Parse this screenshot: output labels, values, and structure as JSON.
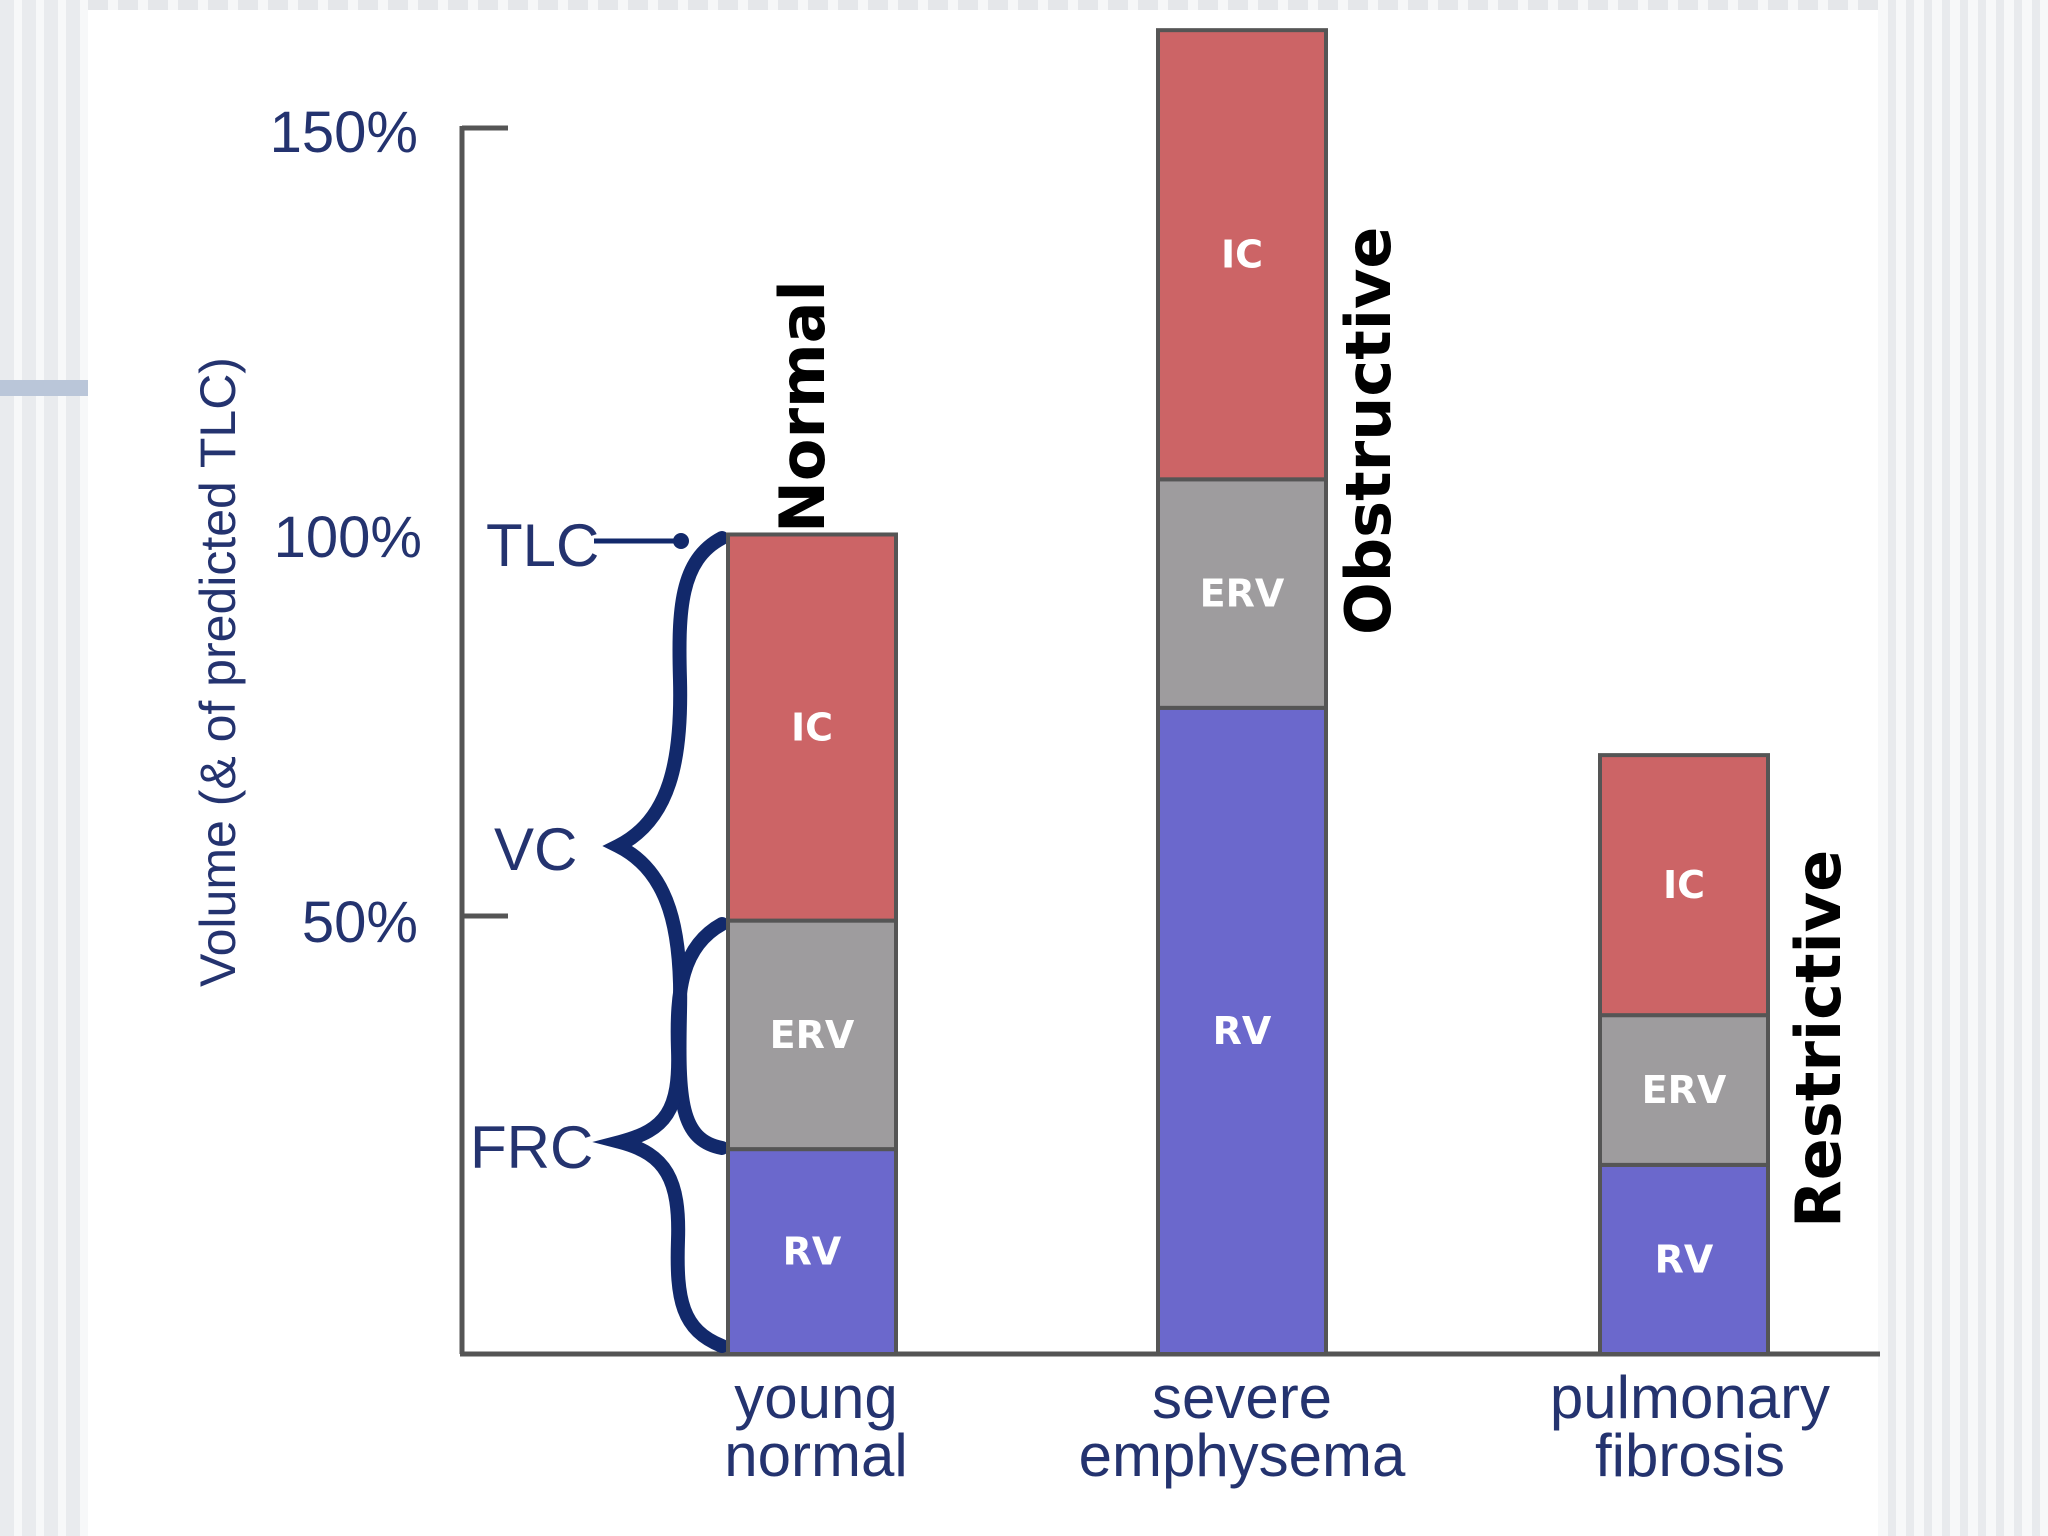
{
  "chart_data": {
    "type": "bar",
    "stacked": true,
    "ylabel": "Volume (& of predicted TLC)",
    "ylim": [
      0,
      150
    ],
    "yticks": [
      {
        "value": 50,
        "label": "50%"
      },
      {
        "value": 100,
        "label": "100%"
      },
      {
        "value": 150,
        "label": "150%"
      }
    ],
    "categories": [
      {
        "line1": "young",
        "line2": "normal",
        "condition": "Normal"
      },
      {
        "line1": "severe",
        "line2": "emphysema",
        "condition": "Obstructive"
      },
      {
        "line1": "pulmonary",
        "line2": "fibrosis",
        "condition": "Restrictive"
      }
    ],
    "series": [
      {
        "name": "RV",
        "color": "#6b68cc",
        "values": [
          26,
          82,
          24
        ]
      },
      {
        "name": "ERV",
        "color": "#9e9c9e",
        "values": [
          29,
          29,
          19
        ]
      },
      {
        "name": "IC",
        "color": "#cc6466",
        "values": [
          49,
          57,
          33
        ]
      }
    ],
    "annotations": {
      "tlc": "TLC",
      "vc": "VC",
      "frc": "FRC"
    },
    "colors": {
      "axis": "#555555",
      "text": "#24336f",
      "brace": "#12296b",
      "bar_border": "#555555"
    }
  }
}
